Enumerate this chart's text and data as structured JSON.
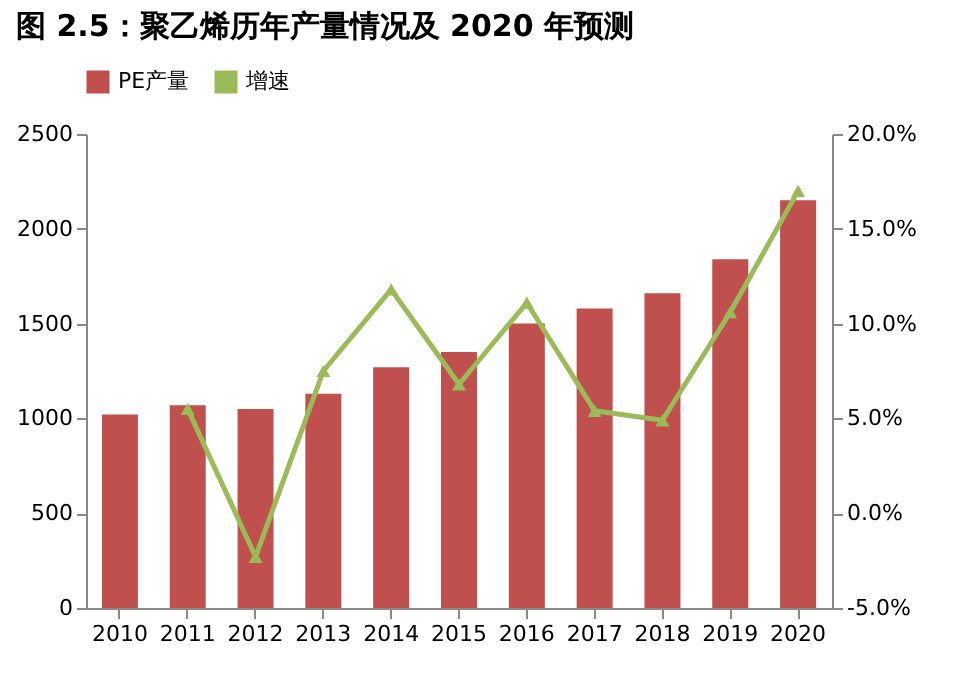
{
  "chart_data": {
    "type": "bar",
    "title": "图 2.5：聚乙烯历年产量情况及 2020 年预测",
    "categories": [
      "2010",
      "2011",
      "2012",
      "2013",
      "2014",
      "2015",
      "2016",
      "2017",
      "2018",
      "2019",
      "2020"
    ],
    "series": [
      {
        "name": "PE产量",
        "color": "#c0504d",
        "values": [
          1020,
          1070,
          1050,
          1130,
          1270,
          1350,
          1500,
          1580,
          1660,
          1840,
          2150
        ]
      },
      {
        "name": "增速",
        "type": "line",
        "axis": "y2",
        "color": "#9bbb59",
        "marker": "triangle",
        "values": [
          null,
          5.5,
          -2.3,
          7.5,
          11.8,
          6.8,
          11.1,
          5.4,
          4.9,
          10.6,
          17.0
        ]
      }
    ],
    "ylim": [
      0,
      2500
    ],
    "yticks": [
      0,
      500,
      1000,
      1500,
      2000,
      2500
    ],
    "y2lim": [
      -5,
      20
    ],
    "y2ticks": [
      {
        "value": -5,
        "label": "-5.0%"
      },
      {
        "value": 0,
        "label": "0.0%"
      },
      {
        "value": 5,
        "label": "5.0%"
      },
      {
        "value": 10,
        "label": "10.0%"
      },
      {
        "value": 15,
        "label": "15.0%"
      },
      {
        "value": 20,
        "label": "20.0%"
      }
    ],
    "legend": "top",
    "grid": false
  }
}
